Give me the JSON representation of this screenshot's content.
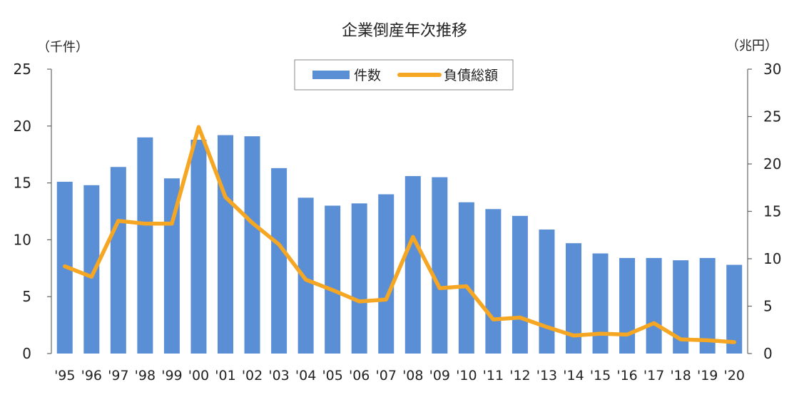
{
  "chart_data": {
    "type": "bar+line",
    "title": "企業倒産年次推移",
    "left_unit": "（千件）",
    "right_unit": "（兆円）",
    "categories": [
      "'95",
      "'96",
      "'97",
      "'98",
      "'99",
      "'00",
      "'01",
      "'02",
      "'03",
      "'04",
      "'05",
      "'06",
      "'07",
      "'08",
      "'09",
      "'10",
      "'11",
      "'12",
      "'13",
      "'14",
      "'15",
      "'16",
      "'17",
      "'18",
      "'19",
      "'20"
    ],
    "series": [
      {
        "name": "件数",
        "type": "bar",
        "axis": "left",
        "color": "#5b8fd5",
        "values": [
          15.1,
          14.8,
          16.4,
          19.0,
          15.4,
          18.8,
          19.2,
          19.1,
          16.3,
          13.7,
          13.0,
          13.2,
          14.0,
          15.6,
          15.5,
          13.3,
          12.7,
          12.1,
          10.9,
          9.7,
          8.8,
          8.4,
          8.4,
          8.2,
          8.4,
          7.8
        ]
      },
      {
        "name": "負債総額",
        "type": "line",
        "axis": "right",
        "color": "#f5a623",
        "values": [
          9.2,
          8.1,
          14.0,
          13.7,
          13.7,
          23.9,
          16.5,
          13.8,
          11.5,
          7.8,
          6.7,
          5.5,
          5.7,
          12.3,
          6.9,
          7.1,
          3.6,
          3.8,
          2.8,
          1.9,
          2.1,
          2.0,
          3.2,
          1.5,
          1.4,
          1.2
        ]
      }
    ],
    "y_left": {
      "min": 0,
      "max": 25,
      "ticks": [
        0,
        5,
        10,
        15,
        20,
        25
      ]
    },
    "y_right": {
      "min": 0,
      "max": 30,
      "ticks": [
        0,
        5,
        10,
        15,
        20,
        25,
        30
      ]
    },
    "grid": false,
    "legend_position": "top-center"
  }
}
